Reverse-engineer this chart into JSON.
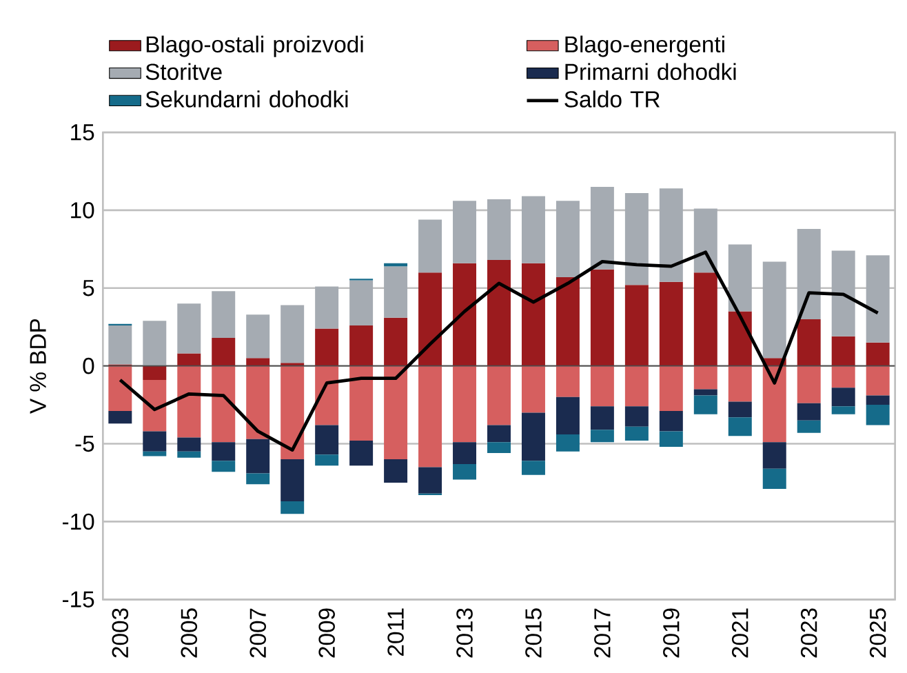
{
  "chart_data": {
    "type": "bar",
    "stacked": true,
    "ylabel": "V % BDP",
    "categories": [
      "2003",
      null,
      "2005",
      null,
      "2007",
      null,
      "2009",
      null,
      "2011",
      null,
      "2013",
      null,
      "2015",
      null,
      "2017",
      null,
      "2019",
      null,
      "2021",
      null,
      "2023",
      null,
      "2025"
    ],
    "series": [
      {
        "name": "Blago-ostali proizvodi",
        "color": "#9b1b1e",
        "values": [
          0.1,
          -0.9,
          0.8,
          1.8,
          0.5,
          0.2,
          2.4,
          2.6,
          3.1,
          6.0,
          6.6,
          6.8,
          6.6,
          5.7,
          6.2,
          5.2,
          5.4,
          6.0,
          3.5,
          0.5,
          3.0,
          1.9,
          1.5
        ]
      },
      {
        "name": "Blago-energenti",
        "color": "#d65f5f",
        "values": [
          -2.9,
          -3.3,
          -4.6,
          -4.9,
          -4.7,
          -6.0,
          -3.8,
          -4.8,
          -6.0,
          -6.5,
          -4.9,
          -3.8,
          -3.0,
          -2.0,
          -2.6,
          -2.6,
          -2.9,
          -1.5,
          -2.3,
          -4.9,
          -2.4,
          -1.4,
          -1.9
        ]
      },
      {
        "name": "Storitve",
        "color": "#a5abb2",
        "values": [
          2.5,
          2.9,
          3.2,
          3.0,
          2.8,
          3.7,
          2.7,
          2.9,
          3.3,
          3.4,
          4.0,
          3.9,
          4.3,
          4.9,
          5.3,
          5.9,
          6.0,
          4.1,
          4.3,
          6.2,
          5.8,
          5.5,
          5.6
        ]
      },
      {
        "name": "Primarni dohodki",
        "color": "#1a2b4f",
        "values": [
          -0.8,
          -1.3,
          -0.9,
          -1.2,
          -2.2,
          -2.7,
          -1.9,
          -1.6,
          -1.5,
          -1.7,
          -1.4,
          -1.1,
          -3.1,
          -2.4,
          -1.5,
          -1.3,
          -1.3,
          -0.4,
          -1.0,
          -1.7,
          -1.1,
          -1.2,
          -0.6
        ]
      },
      {
        "name": "Sekundarni dohodki",
        "color": "#156b8a",
        "values": [
          0.1,
          -0.3,
          -0.4,
          -0.7,
          -0.7,
          -0.8,
          -0.7,
          0.1,
          0.2,
          -0.1,
          -1.0,
          -0.7,
          -0.9,
          -1.1,
          -0.8,
          -0.9,
          -1.0,
          -1.2,
          -1.2,
          -1.3,
          -0.8,
          -0.5,
          -1.3
        ]
      },
      {
        "name": "Saldo TR",
        "type": "line",
        "color": "#000000",
        "values": [
          -0.9,
          -2.8,
          -1.8,
          -1.9,
          -4.2,
          -5.4,
          -1.1,
          -0.8,
          -0.8,
          1.4,
          3.5,
          5.3,
          4.1,
          5.3,
          6.7,
          6.5,
          6.4,
          7.3,
          3.2,
          -1.1,
          4.7,
          4.6,
          3.4
        ]
      }
    ],
    "ylim": [
      -15,
      15
    ],
    "yticks": [
      -15,
      -10,
      -5,
      0,
      5,
      10,
      15
    ],
    "grid": "y",
    "legend": "top",
    "marker": "none",
    "line_style": "solid"
  }
}
